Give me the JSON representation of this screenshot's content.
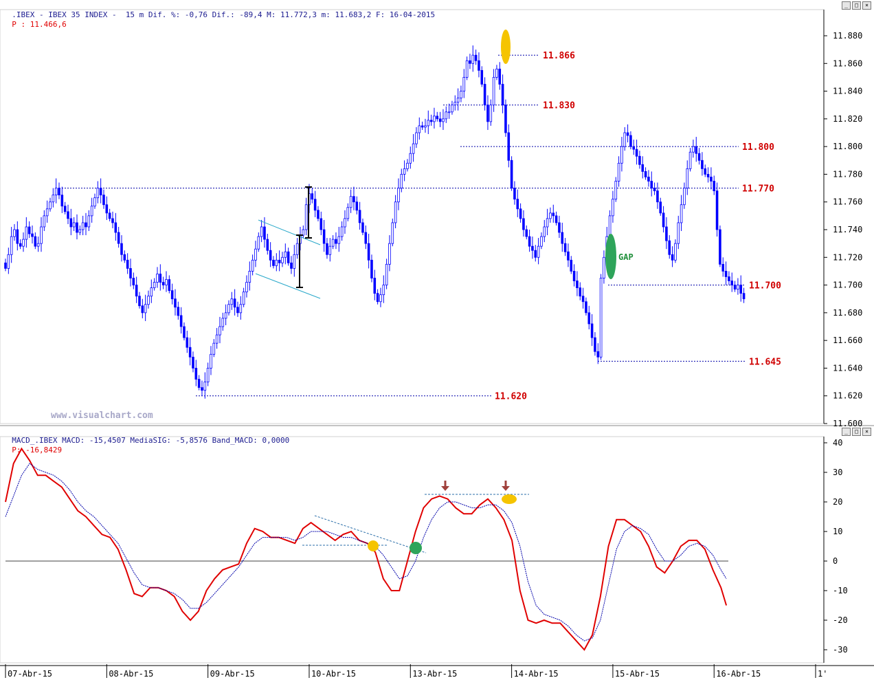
{
  "header": {
    "price_info": ".IBEX - IBEX 35 INDEX -  15 m Dif. %: -0,76 Dif.: -89,4 M: 11.772,3 m: 11.683,2 F: 16-04-2015",
    "price_last": "P : 11.466,6",
    "macd_info": "MACD_.IBEX MACD: -15,4507 MediaSIG: -5,8576 Band_MACD: 0,0000",
    "macd_last": "P: -16,8429"
  },
  "watermark": "www.visualchart.com",
  "colors": {
    "candle": "#0000ff",
    "macd": "#e00000",
    "signal": "#0000aa",
    "levels": "#0000aa",
    "level_label": "#d00000",
    "gap": "#2ea45a",
    "highlight": "#f5c400",
    "arrow": "#a0413c"
  },
  "icons": [
    "minimize-icon",
    "maximize-icon",
    "close-icon"
  ],
  "chart_data": [
    {
      "type": "candlestick",
      "title": "IBEX 35 INDEX 15 m",
      "ylim": [
        11600,
        11890
      ],
      "y_ticks": [
        "11.600",
        "11.620",
        "11.640",
        "11.660",
        "11.680",
        "11.700",
        "11.720",
        "11.740",
        "11.760",
        "11.780",
        "11.800",
        "11.820",
        "11.840",
        "11.860",
        "11.880"
      ],
      "x_dates": [
        "07-Abr-15",
        "08-Abr-15",
        "09-Abr-15",
        "10-Abr-15",
        "13-Abr-15",
        "14-Abr-15",
        "15-Abr-15",
        "16-Abr-15",
        "1'"
      ],
      "bars_per_day": 34,
      "closes": [
        11712,
        11722,
        11735,
        11740,
        11730,
        11728,
        11733,
        11742,
        11737,
        11735,
        11728,
        11730,
        11742,
        11750,
        11755,
        11760,
        11765,
        11770,
        11765,
        11757,
        11753,
        11748,
        11742,
        11745,
        11738,
        11740,
        11745,
        11742,
        11750,
        11757,
        11763,
        11770,
        11765,
        11758,
        11752,
        11748,
        11745,
        11738,
        11730,
        11722,
        11718,
        11712,
        11705,
        11700,
        11692,
        11685,
        11680,
        11686,
        11692,
        11698,
        11702,
        11708,
        11702,
        11700,
        11704,
        11696,
        11690,
        11684,
        11678,
        11670,
        11662,
        11655,
        11648,
        11640,
        11632,
        11626,
        11624,
        11630,
        11640,
        11650,
        11658,
        11664,
        11670,
        11676,
        11680,
        11686,
        11690,
        11684,
        11680,
        11686,
        11695,
        11702,
        11710,
        11718,
        11726,
        11735,
        11742,
        11733,
        11725,
        11718,
        11714,
        11718,
        11716,
        11720,
        11724,
        11716,
        11712,
        11722,
        11730,
        11736,
        11740,
        11758,
        11766,
        11762,
        11754,
        11748,
        11740,
        11730,
        11722,
        11728,
        11733,
        11730,
        11735,
        11742,
        11748,
        11756,
        11764,
        11760,
        11754,
        11745,
        11738,
        11730,
        11718,
        11705,
        11694,
        11688,
        11693,
        11700,
        11715,
        11730,
        11745,
        11760,
        11770,
        11780,
        11784,
        11788,
        11795,
        11802,
        11810,
        11815,
        11814,
        11815,
        11819,
        11818,
        11822,
        11820,
        11818,
        11820,
        11825,
        11825,
        11830,
        11832,
        11835,
        11840,
        11850,
        11862,
        11860,
        11866,
        11862,
        11855,
        11845,
        11830,
        11818,
        11830,
        11850,
        11856,
        11845,
        11830,
        11810,
        11790,
        11770,
        11762,
        11755,
        11748,
        11740,
        11735,
        11728,
        11725,
        11720,
        11728,
        11735,
        11742,
        11748,
        11752,
        11750,
        11745,
        11738,
        11730,
        11724,
        11718,
        11710,
        11703,
        11698,
        11692,
        11688,
        11680,
        11672,
        11662,
        11652,
        11648,
        11705,
        11720,
        11735,
        11750,
        11762,
        11775,
        11788,
        11800,
        11810,
        11808,
        11800,
        11798,
        11793,
        11787,
        11782,
        11778,
        11775,
        11770,
        11768,
        11760,
        11752,
        11742,
        11732,
        11722,
        11718,
        11730,
        11745,
        11758,
        11770,
        11784,
        11796,
        11800,
        11795,
        11790,
        11784,
        11780,
        11778,
        11775,
        11768,
        11740,
        11715,
        11710,
        11706,
        11703,
        11700,
        11697,
        11700,
        11694,
        11690
      ],
      "levels": [
        {
          "label": "11.866",
          "value": 11866
        },
        {
          "label": "11.830",
          "value": 11830
        },
        {
          "label": "11.800",
          "value": 11800
        },
        {
          "label": "11.770",
          "value": 11770
        },
        {
          "label": "11.700",
          "value": 11700
        },
        {
          "label": "11.645",
          "value": 11645
        },
        {
          "label": "11.620",
          "value": 11620
        }
      ],
      "annotations": [
        "GAP"
      ]
    },
    {
      "type": "line",
      "title": "MACD",
      "ylim": [
        -35,
        40
      ],
      "y_ticks": [
        "40",
        "30",
        "20",
        "10",
        "0",
        "-10",
        "-20",
        "-30"
      ],
      "series": [
        {
          "name": "MACD",
          "points": [
            [
              0,
              20
            ],
            [
              3,
              33
            ],
            [
              6,
              38
            ],
            [
              9,
              34
            ],
            [
              12,
              29
            ],
            [
              15,
              29
            ],
            [
              18,
              27
            ],
            [
              21,
              25
            ],
            [
              24,
              21
            ],
            [
              27,
              17
            ],
            [
              30,
              15
            ],
            [
              33,
              12
            ],
            [
              36,
              9
            ],
            [
              39,
              8
            ],
            [
              42,
              4
            ],
            [
              45,
              -3
            ],
            [
              48,
              -11
            ],
            [
              51,
              -12
            ],
            [
              54,
              -9
            ],
            [
              57,
              -9
            ],
            [
              60,
              -10
            ],
            [
              63,
              -12
            ],
            [
              66,
              -17
            ],
            [
              69,
              -20
            ],
            [
              72,
              -17
            ],
            [
              75,
              -10
            ],
            [
              78,
              -6
            ],
            [
              81,
              -3
            ],
            [
              84,
              -2
            ],
            [
              87,
              -1
            ],
            [
              90,
              6
            ],
            [
              93,
              11
            ],
            [
              96,
              10
            ],
            [
              99,
              8
            ],
            [
              102,
              8
            ],
            [
              105,
              7
            ],
            [
              108,
              6
            ],
            [
              111,
              11
            ],
            [
              114,
              13
            ],
            [
              117,
              11
            ],
            [
              120,
              9
            ],
            [
              123,
              7
            ],
            [
              126,
              9
            ],
            [
              129,
              10
            ],
            [
              132,
              7
            ],
            [
              135,
              6
            ],
            [
              138,
              3
            ],
            [
              141,
              -6
            ],
            [
              144,
              -10
            ],
            [
              147,
              -10
            ],
            [
              150,
              0
            ],
            [
              153,
              10
            ],
            [
              156,
              18
            ],
            [
              159,
              21
            ],
            [
              162,
              22
            ],
            [
              165,
              21
            ],
            [
              168,
              18
            ],
            [
              171,
              16
            ],
            [
              174,
              16
            ],
            [
              177,
              19
            ],
            [
              180,
              21
            ],
            [
              183,
              18
            ],
            [
              186,
              14
            ],
            [
              189,
              7
            ],
            [
              192,
              -10
            ],
            [
              195,
              -20
            ],
            [
              198,
              -21
            ],
            [
              201,
              -20
            ],
            [
              204,
              -21
            ],
            [
              207,
              -21
            ],
            [
              210,
              -24
            ],
            [
              213,
              -27
            ],
            [
              216,
              -30
            ],
            [
              219,
              -25
            ],
            [
              222,
              -12
            ],
            [
              225,
              5
            ],
            [
              228,
              14
            ],
            [
              231,
              14
            ],
            [
              234,
              12
            ],
            [
              237,
              10
            ],
            [
              240,
              5
            ],
            [
              243,
              -2
            ],
            [
              246,
              -4
            ],
            [
              249,
              0
            ],
            [
              252,
              5
            ],
            [
              255,
              7
            ],
            [
              258,
              7
            ],
            [
              261,
              4
            ],
            [
              264,
              -3
            ],
            [
              267,
              -9
            ],
            [
              269,
              -15
            ]
          ]
        },
        {
          "name": "MediaSIG",
          "points": [
            [
              0,
              15
            ],
            [
              3,
              22
            ],
            [
              6,
              29
            ],
            [
              9,
              33
            ],
            [
              12,
              31
            ],
            [
              15,
              30
            ],
            [
              18,
              29
            ],
            [
              21,
              27
            ],
            [
              24,
              24
            ],
            [
              27,
              20
            ],
            [
              30,
              17
            ],
            [
              33,
              15
            ],
            [
              36,
              12
            ],
            [
              39,
              9
            ],
            [
              42,
              6
            ],
            [
              45,
              1
            ],
            [
              48,
              -4
            ],
            [
              51,
              -8
            ],
            [
              54,
              -9
            ],
            [
              57,
              -9
            ],
            [
              60,
              -10
            ],
            [
              63,
              -11
            ],
            [
              66,
              -13
            ],
            [
              69,
              -16
            ],
            [
              72,
              -16
            ],
            [
              75,
              -14
            ],
            [
              78,
              -11
            ],
            [
              81,
              -8
            ],
            [
              84,
              -5
            ],
            [
              87,
              -2
            ],
            [
              90,
              2
            ],
            [
              93,
              6
            ],
            [
              96,
              8
            ],
            [
              99,
              8
            ],
            [
              102,
              8
            ],
            [
              105,
              8
            ],
            [
              108,
              7
            ],
            [
              111,
              8
            ],
            [
              114,
              10
            ],
            [
              117,
              10
            ],
            [
              120,
              10
            ],
            [
              123,
              9
            ],
            [
              126,
              8
            ],
            [
              129,
              8
            ],
            [
              132,
              7
            ],
            [
              135,
              6
            ],
            [
              138,
              5
            ],
            [
              141,
              2
            ],
            [
              144,
              -2
            ],
            [
              147,
              -6
            ],
            [
              150,
              -5
            ],
            [
              153,
              0
            ],
            [
              156,
              8
            ],
            [
              159,
              14
            ],
            [
              162,
              18
            ],
            [
              165,
              20
            ],
            [
              168,
              20
            ],
            [
              171,
              19
            ],
            [
              174,
              18
            ],
            [
              177,
              18
            ],
            [
              180,
              19
            ],
            [
              183,
              19
            ],
            [
              186,
              17
            ],
            [
              189,
              13
            ],
            [
              192,
              5
            ],
            [
              195,
              -7
            ],
            [
              198,
              -15
            ],
            [
              201,
              -18
            ],
            [
              204,
              -19
            ],
            [
              207,
              -20
            ],
            [
              210,
              -22
            ],
            [
              213,
              -25
            ],
            [
              216,
              -27
            ],
            [
              219,
              -26
            ],
            [
              222,
              -20
            ],
            [
              225,
              -8
            ],
            [
              228,
              4
            ],
            [
              231,
              10
            ],
            [
              234,
              12
            ],
            [
              237,
              11
            ],
            [
              240,
              9
            ],
            [
              243,
              4
            ],
            [
              246,
              0
            ],
            [
              249,
              0
            ],
            [
              252,
              2
            ],
            [
              255,
              5
            ],
            [
              258,
              6
            ],
            [
              261,
              5
            ],
            [
              264,
              2
            ],
            [
              267,
              -3
            ],
            [
              269,
              -6
            ]
          ]
        }
      ]
    }
  ]
}
